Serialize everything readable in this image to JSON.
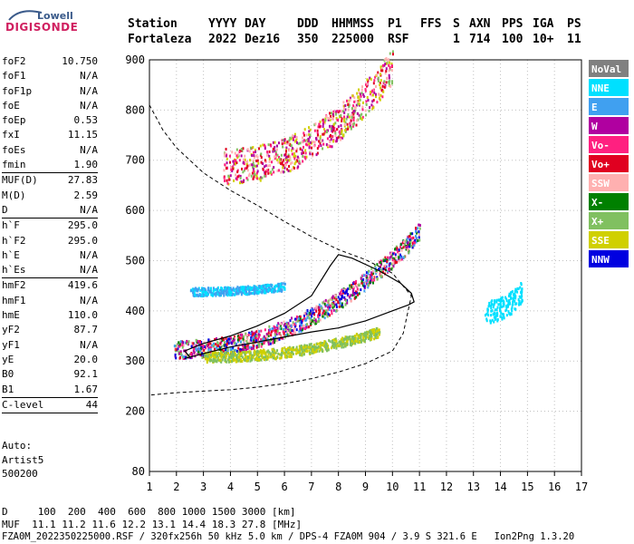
{
  "logo": {
    "line1": "Lowell",
    "line2": "DIGISONDE"
  },
  "header": {
    "row1": [
      "Station",
      "YYYY",
      "DAY",
      "DDD",
      "HHMMSS",
      "P1",
      "FFS",
      "S",
      "AXN",
      "PPS",
      "IGA",
      "PS"
    ],
    "row2": [
      "Fortaleza",
      "2022",
      "Dez16",
      "350",
      "225000",
      "RSF",
      "",
      "1",
      "714",
      "100",
      "10+",
      "11"
    ]
  },
  "params": [
    {
      "group": [
        {
          "label": "foF2",
          "value": "10.750"
        },
        {
          "label": "foF1",
          "value": "N/A"
        },
        {
          "label": "foF1p",
          "value": "N/A"
        },
        {
          "label": "foE",
          "value": "N/A"
        },
        {
          "label": "foEp",
          "value": "0.53"
        },
        {
          "label": "fxI",
          "value": "11.15"
        },
        {
          "label": "foEs",
          "value": "N/A"
        },
        {
          "label": "fmin",
          "value": "1.90"
        }
      ]
    },
    {
      "group": [
        {
          "label": "MUF(D)",
          "value": "27.83"
        },
        {
          "label": "M(D)",
          "value": "2.59"
        },
        {
          "label": "D",
          "value": "N/A"
        }
      ]
    },
    {
      "group": [
        {
          "label": "h`F",
          "value": "295.0"
        },
        {
          "label": "h`F2",
          "value": "295.0"
        },
        {
          "label": "h`E",
          "value": "N/A"
        },
        {
          "label": "h`Es",
          "value": "N/A"
        }
      ]
    },
    {
      "group": [
        {
          "label": "hmF2",
          "value": "419.6"
        },
        {
          "label": "hmF1",
          "value": "N/A"
        },
        {
          "label": "hmE",
          "value": "110.0"
        },
        {
          "label": "yF2",
          "value": "87.7"
        },
        {
          "label": "yF1",
          "value": "N/A"
        },
        {
          "label": "yE",
          "value": "20.0"
        },
        {
          "label": "B0",
          "value": "92.1"
        },
        {
          "label": "B1",
          "value": "1.67"
        }
      ]
    },
    {
      "group": [
        {
          "label": "C-level",
          "value": "44"
        }
      ]
    }
  ],
  "auto": [
    "Auto:",
    "Artist5",
    "500200"
  ],
  "footer": {
    "line1": "D     100  200  400  600  800 1000 1500 3000 [km]",
    "line2": "MUF  11.1 11.2 11.6 12.2 13.1 14.4 18.3 27.8 [MHz]",
    "line3": "FZA0M_2022350225000.RSF / 320fx256h 50 kHz 5.0 km / DPS-4 FZA0M 904 / 3.9 S 321.6 E   Ion2Png 1.3.20"
  },
  "legend": [
    {
      "label": "NoVal",
      "color": "#808080",
      "text": "#ffffff"
    },
    {
      "label": "NNE",
      "color": "#00e0ff",
      "text": "#ffffff"
    },
    {
      "label": "E",
      "color": "#40a0f0",
      "text": "#ffffff"
    },
    {
      "label": "W",
      "color": "#b000a0",
      "text": "#ffffff"
    },
    {
      "label": "Vo-",
      "color": "#ff2080",
      "text": "#ffffff"
    },
    {
      "label": "Vo+",
      "color": "#e00020",
      "text": "#ffffff"
    },
    {
      "label": "SSW",
      "color": "#ffb0b0",
      "text": "#ffffff"
    },
    {
      "label": "X-",
      "color": "#008000",
      "text": "#ffffff"
    },
    {
      "label": "X+",
      "color": "#80c060",
      "text": "#ffffff"
    },
    {
      "label": "SSE",
      "color": "#d0d000",
      "text": "#ffffff"
    },
    {
      "label": "NNW",
      "color": "#0000e0",
      "text": "#ffffff"
    }
  ],
  "chart_data": {
    "type": "scatter",
    "xlim": [
      1,
      17
    ],
    "ylim": [
      80,
      900
    ],
    "x_ticks": [
      1,
      2,
      3,
      4,
      5,
      6,
      7,
      8,
      9,
      10,
      11,
      12,
      13,
      14,
      15,
      16,
      17
    ],
    "y_ticks": [
      80,
      200,
      300,
      400,
      500,
      600,
      700,
      800,
      900
    ],
    "grid": true,
    "dashed_curve": [
      [
        1,
        810
      ],
      [
        1.5,
        760
      ],
      [
        2,
        725
      ],
      [
        3,
        675
      ],
      [
        4,
        640
      ],
      [
        5,
        610
      ],
      [
        6,
        578
      ],
      [
        7,
        548
      ],
      [
        8,
        522
      ],
      [
        9,
        502
      ],
      [
        10,
        475
      ],
      [
        10.7,
        430
      ],
      [
        10.4,
        355
      ],
      [
        10,
        320
      ],
      [
        9,
        295
      ],
      [
        8,
        278
      ],
      [
        7,
        265
      ],
      [
        6,
        255
      ],
      [
        5,
        248
      ],
      [
        4,
        243
      ],
      [
        3,
        240
      ],
      [
        2,
        237
      ],
      [
        1,
        232
      ]
    ],
    "solid_lower": [
      [
        2.3,
        305
      ],
      [
        3,
        315
      ],
      [
        4,
        328
      ],
      [
        5,
        338
      ],
      [
        6,
        348
      ],
      [
        7,
        358
      ],
      [
        8,
        366
      ],
      [
        9,
        380
      ],
      [
        10,
        400
      ],
      [
        10.6,
        412
      ],
      [
        10.8,
        418
      ],
      [
        10.7,
        435
      ],
      [
        10.3,
        455
      ],
      [
        9.5,
        480
      ],
      [
        8.5,
        505
      ],
      [
        8,
        512
      ],
      [
        7.7,
        490
      ],
      [
        7,
        430
      ],
      [
        6,
        395
      ],
      [
        5,
        370
      ],
      [
        4,
        350
      ],
      [
        3,
        335
      ],
      [
        2.3,
        320
      ],
      [
        2.5,
        308
      ]
    ],
    "bands": [
      {
        "name": "F2 trace",
        "x": [
          1.9,
          11.0
        ],
        "h_start": 325,
        "h_end": 560,
        "spread": 18,
        "colors": [
          "#ff2080",
          "#e00020",
          "#b000a0",
          "#40a0f0",
          "#008000",
          "#ffb0b0",
          "#0000e0",
          "#80c060"
        ]
      },
      {
        "name": "second hop",
        "x": [
          3.7,
          10.0
        ],
        "h_start": 690,
        "h_end": 890,
        "spread": 35,
        "colors": [
          "#ff2080",
          "#e00020",
          "#ffb0b0",
          "#b000a0",
          "#80c060",
          "#d0d000"
        ]
      },
      {
        "name": "lower echoes",
        "x": [
          3.0,
          9.5
        ],
        "h_start": 310,
        "h_end": 360,
        "spread": 10,
        "colors": [
          "#d0d000",
          "#80c060"
        ]
      },
      {
        "name": "E spread",
        "x": [
          2.5,
          6.0
        ],
        "h_start": 440,
        "h_end": 450,
        "spread": 8,
        "colors": [
          "#40a0f0",
          "#00e0ff"
        ]
      },
      {
        "name": "outlier cluster",
        "x": [
          13.4,
          14.8
        ],
        "h_start": 400,
        "h_end": 440,
        "spread": 22,
        "colors": [
          "#00e0ff"
        ]
      }
    ]
  }
}
